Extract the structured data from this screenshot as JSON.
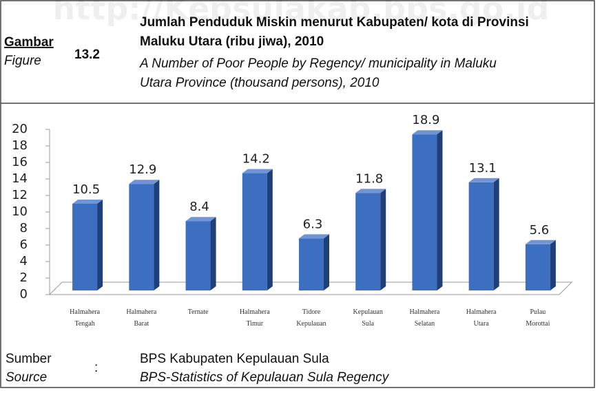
{
  "watermark": "http://Kepsulakab.bps.go.id",
  "figure_label": "Gambar",
  "figure_label_en": "Figure",
  "figure_number": "13.2",
  "source_label": "Sumber",
  "source_label_en": "Source",
  "source_separator": ":",
  "source": "BPS Kabupaten Kepulauan Sula",
  "source_en": "BPS-Statistics of Kepulauan Sula Regency",
  "chart_data": {
    "type": "bar",
    "title": [
      "Jumlah Penduduk Miskin menurut Kabupaten/ kota di Provinsi",
      "Maluku Utara (ribu jiwa), 2010"
    ],
    "subtitle": [
      "A Number of Poor People by Regency/ municipality in Maluku",
      "Utara Province (thousand persons), 2010"
    ],
    "categories": [
      "Halmahera Tengah",
      "Halmahera Barat",
      "Ternate",
      "Halmahera Timur",
      "Tidore Kepulauan",
      "Kepulauan Sula",
      "Halmahera Selatan",
      "Halmahera Utara",
      "Pulau Morottai"
    ],
    "values": [
      10.5,
      12.9,
      8.4,
      14.2,
      6.3,
      11.8,
      18.9,
      13.1,
      5.6
    ],
    "color": "#3d6fc0",
    "ylim": [
      0,
      20
    ],
    "yticks": [
      0,
      2,
      4,
      6,
      8,
      10,
      12,
      14,
      16,
      18,
      20
    ]
  }
}
